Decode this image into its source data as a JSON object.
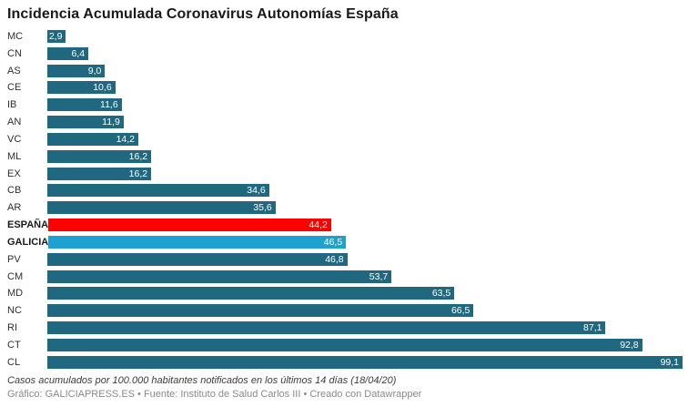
{
  "title": "Incidencia Acumulada Coronavirus Autonomías España",
  "footer": {
    "note": "Casos acumulados por 100.000 habitantes notificados en los últimos 14 días (18/04/20)",
    "credits": "Gráfico: GALICIAPRESS.ES • Fuente: Instituto de Salud Carlos III • Creado con Datawrapper"
  },
  "colors": {
    "bar_default": "#1F6880",
    "bar_espana": "#FF0000",
    "bar_galicia": "#1EA0D0",
    "value_text": "#FFFFFF"
  },
  "chart_data": {
    "type": "bar",
    "orientation": "horizontal",
    "title": "Incidencia Acumulada Coronavirus Autonomías España",
    "xlabel": "",
    "ylabel": "",
    "xlim": [
      0,
      99.1
    ],
    "grid": false,
    "legend": "none",
    "categories": [
      "MC",
      "CN",
      "AS",
      "CE",
      "IB",
      "AN",
      "VC",
      "ML",
      "EX",
      "CB",
      "AR",
      "ESPAÑA",
      "GALICIA",
      "PV",
      "CM",
      "MD",
      "NC",
      "RI",
      "CT",
      "CL"
    ],
    "values": [
      2.9,
      6.4,
      9.0,
      10.6,
      11.6,
      11.9,
      14.2,
      16.2,
      16.2,
      34.6,
      35.6,
      44.2,
      46.5,
      46.8,
      53.7,
      63.5,
      66.5,
      87.1,
      92.8,
      99.1
    ],
    "rows": [
      {
        "label": "MC",
        "value": 2.9,
        "display": "2,9",
        "color": "#1F6880",
        "bold": false
      },
      {
        "label": "CN",
        "value": 6.4,
        "display": "6,4",
        "color": "#1F6880",
        "bold": false
      },
      {
        "label": "AS",
        "value": 9.0,
        "display": "9,0",
        "color": "#1F6880",
        "bold": false
      },
      {
        "label": "CE",
        "value": 10.6,
        "display": "10,6",
        "color": "#1F6880",
        "bold": false
      },
      {
        "label": "IB",
        "value": 11.6,
        "display": "11,6",
        "color": "#1F6880",
        "bold": false
      },
      {
        "label": "AN",
        "value": 11.9,
        "display": "11,9",
        "color": "#1F6880",
        "bold": false
      },
      {
        "label": "VC",
        "value": 14.2,
        "display": "14,2",
        "color": "#1F6880",
        "bold": false
      },
      {
        "label": "ML",
        "value": 16.2,
        "display": "16,2",
        "color": "#1F6880",
        "bold": false
      },
      {
        "label": "EX",
        "value": 16.2,
        "display": "16,2",
        "color": "#1F6880",
        "bold": false
      },
      {
        "label": "CB",
        "value": 34.6,
        "display": "34,6",
        "color": "#1F6880",
        "bold": false
      },
      {
        "label": "AR",
        "value": 35.6,
        "display": "35,6",
        "color": "#1F6880",
        "bold": false
      },
      {
        "label": "ESPAÑA",
        "value": 44.2,
        "display": "44,2",
        "color": "#FF0000",
        "bold": true
      },
      {
        "label": "GALICIA",
        "value": 46.5,
        "display": "46,5",
        "color": "#1EA0D0",
        "bold": true
      },
      {
        "label": "PV",
        "value": 46.8,
        "display": "46,8",
        "color": "#1F6880",
        "bold": false
      },
      {
        "label": "CM",
        "value": 53.7,
        "display": "53,7",
        "color": "#1F6880",
        "bold": false
      },
      {
        "label": "MD",
        "value": 63.5,
        "display": "63,5",
        "color": "#1F6880",
        "bold": false
      },
      {
        "label": "NC",
        "value": 66.5,
        "display": "66,5",
        "color": "#1F6880",
        "bold": false
      },
      {
        "label": "RI",
        "value": 87.1,
        "display": "87,1",
        "color": "#1F6880",
        "bold": false
      },
      {
        "label": "CT",
        "value": 92.8,
        "display": "92,8",
        "color": "#1F6880",
        "bold": false
      },
      {
        "label": "CL",
        "value": 99.1,
        "display": "99,1",
        "color": "#1F6880",
        "bold": false
      }
    ]
  }
}
